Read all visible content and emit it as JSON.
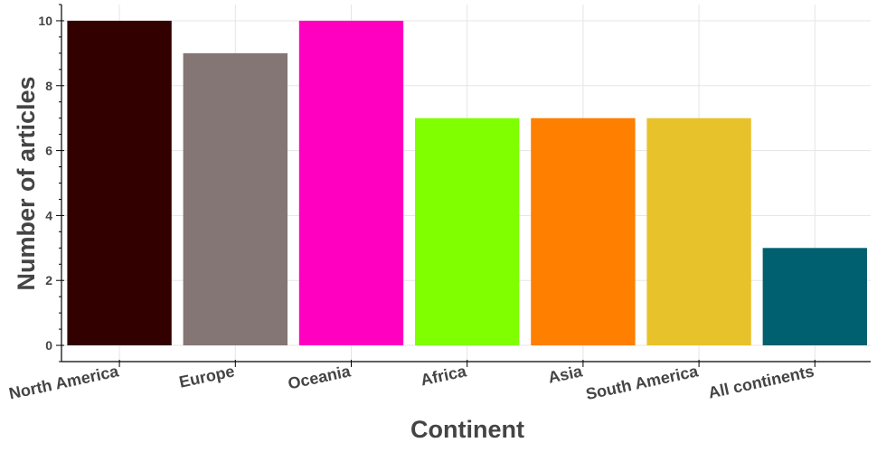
{
  "chart_data": {
    "type": "bar",
    "categories": [
      "North America",
      "Europe",
      "Oceania",
      "Africa",
      "Asia",
      "South America",
      "All continents"
    ],
    "values": [
      10,
      9,
      10,
      7,
      7,
      7,
      3
    ],
    "colors": [
      "#330000",
      "#847674",
      "#ff00c0",
      "#7fff00",
      "#ff7f00",
      "#e8c22b",
      "#006070"
    ],
    "title": "",
    "xlabel": "Continent",
    "ylabel": "Number of articles",
    "ylim": [
      -0.5,
      10.5
    ],
    "yticks": [
      0,
      2,
      4,
      6,
      8,
      10
    ],
    "grid": true,
    "legend": "none"
  }
}
